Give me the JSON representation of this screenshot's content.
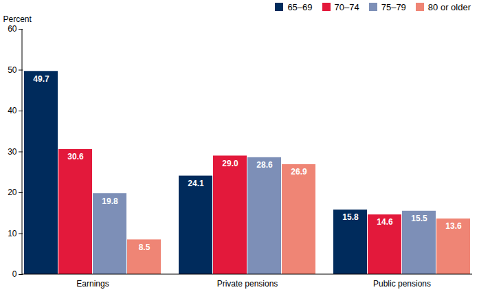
{
  "chart_data": {
    "type": "bar",
    "y_label": "Percent",
    "categories": [
      "Earnings",
      "Private pensions",
      "Public pensions"
    ],
    "series": [
      {
        "name": "65–69",
        "color": "#002b5c",
        "values": [
          49.7,
          24.1,
          15.8
        ],
        "value_labels": [
          "49.7",
          "24.1",
          "15.8"
        ]
      },
      {
        "name": "70–74",
        "color": "#e3193b",
        "values": [
          30.6,
          29.0,
          14.6
        ],
        "value_labels": [
          "30.6",
          "29.0",
          "14.6"
        ]
      },
      {
        "name": "75–79",
        "color": "#7d8fb7",
        "values": [
          19.8,
          28.6,
          15.5
        ],
        "value_labels": [
          "19.8",
          "28.6",
          "15.5"
        ]
      },
      {
        "name": "80 or older",
        "color": "#ef8575",
        "values": [
          8.5,
          26.9,
          13.6
        ],
        "value_labels": [
          "8.5",
          "26.9",
          "13.6"
        ]
      }
    ],
    "ylim": [
      0,
      60
    ],
    "yticks": [
      0,
      10,
      20,
      30,
      40,
      50,
      60
    ],
    "grid": false,
    "legend": "top-right",
    "data_labels": true
  }
}
